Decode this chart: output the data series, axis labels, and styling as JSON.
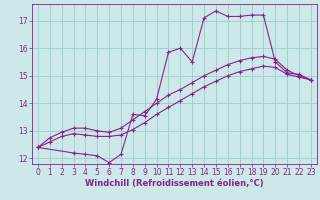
{
  "bg_color": "#cce8e8",
  "grid_color": "#99cccc",
  "line_color": "#882288",
  "marker": "+",
  "markersize": 3,
  "linewidth": 0.8,
  "xlabel": "Windchill (Refroidissement éolien,°C)",
  "xlabel_fontsize": 6,
  "tick_fontsize": 5.5,
  "xlim": [
    -0.5,
    23.5
  ],
  "ylim": [
    11.8,
    17.6
  ],
  "yticks": [
    12,
    13,
    14,
    15,
    16,
    17
  ],
  "xticks": [
    0,
    1,
    2,
    3,
    4,
    5,
    6,
    7,
    8,
    9,
    10,
    11,
    12,
    13,
    14,
    15,
    16,
    17,
    18,
    19,
    20,
    21,
    22,
    23
  ],
  "line1_x": [
    0,
    1,
    2,
    3,
    4,
    5,
    6,
    7,
    8,
    9,
    10,
    11,
    12,
    13,
    14,
    15,
    16,
    17,
    18,
    19,
    20,
    21,
    22,
    23
  ],
  "line1_y": [
    12.4,
    12.6,
    12.8,
    12.9,
    12.85,
    12.8,
    12.8,
    12.85,
    13.05,
    13.3,
    13.6,
    13.85,
    14.1,
    14.35,
    14.6,
    14.8,
    15.0,
    15.15,
    15.25,
    15.35,
    15.3,
    15.05,
    14.95,
    14.85
  ],
  "line2_x": [
    0,
    1,
    2,
    3,
    4,
    5,
    6,
    7,
    8,
    9,
    10,
    11,
    12,
    13,
    14,
    15,
    16,
    17,
    18,
    19,
    20,
    21,
    22,
    23
  ],
  "line2_y": [
    12.4,
    12.75,
    12.95,
    13.1,
    13.1,
    13.0,
    12.95,
    13.1,
    13.4,
    13.7,
    14.0,
    14.3,
    14.5,
    14.75,
    15.0,
    15.2,
    15.4,
    15.55,
    15.65,
    15.7,
    15.6,
    15.2,
    15.0,
    14.85
  ],
  "line3_x": [
    0,
    3,
    4,
    5,
    6,
    7,
    8,
    9,
    10,
    11,
    12,
    13,
    14,
    15,
    16,
    17,
    18,
    19,
    20,
    21,
    22,
    23
  ],
  "line3_y": [
    12.4,
    12.2,
    12.15,
    12.1,
    11.85,
    12.15,
    13.6,
    13.55,
    14.15,
    15.85,
    16.0,
    15.5,
    17.1,
    17.35,
    17.15,
    17.15,
    17.2,
    17.2,
    15.5,
    15.1,
    15.05,
    14.85
  ]
}
